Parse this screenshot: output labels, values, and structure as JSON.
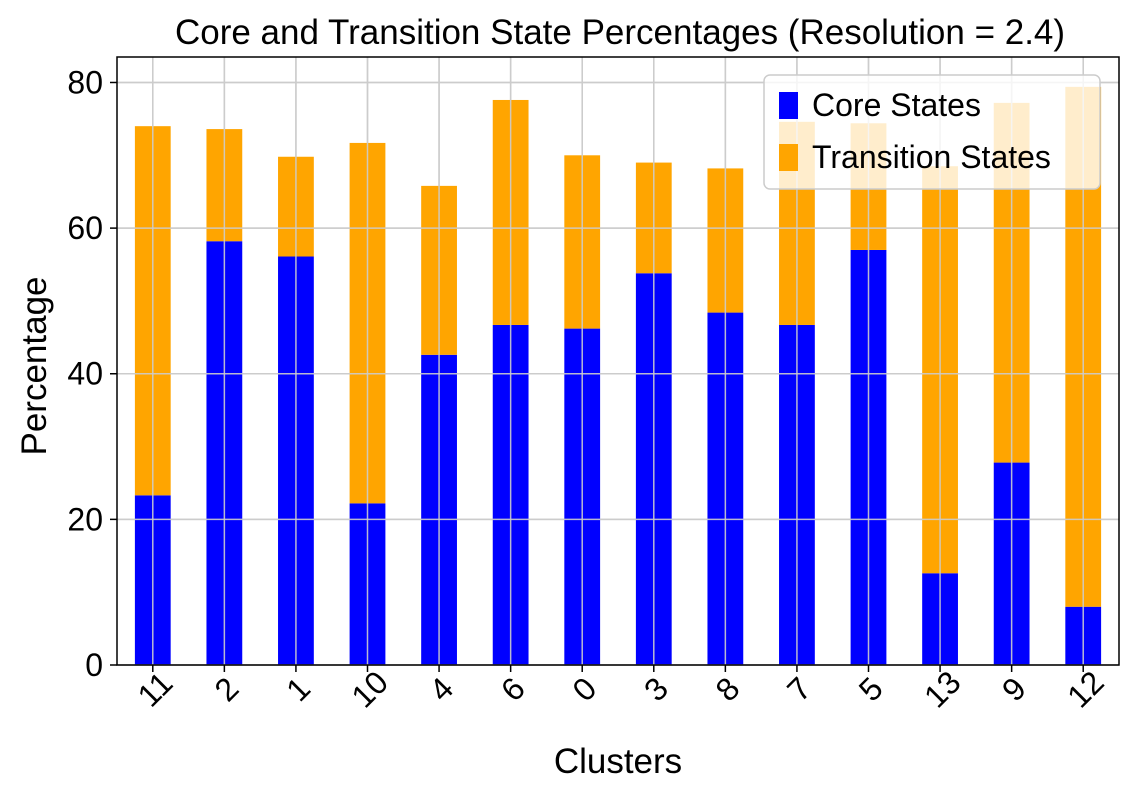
{
  "chart_data": {
    "type": "bar",
    "stacked": true,
    "title": "Core and Transition State Percentages (Resolution = 2.4)",
    "xlabel": "Clusters",
    "ylabel": "Percentage",
    "categories": [
      "11",
      "2",
      "1",
      "10",
      "4",
      "6",
      "0",
      "3",
      "8",
      "7",
      "5",
      "13",
      "9",
      "12"
    ],
    "series": [
      {
        "name": "Core States",
        "color": "#0000ff",
        "values": [
          23.3,
          58.2,
          56.1,
          22.2,
          42.6,
          46.7,
          46.2,
          53.8,
          48.4,
          46.7,
          57.0,
          12.6,
          27.8,
          8.0
        ]
      },
      {
        "name": "Transition States",
        "color": "#ffa500",
        "values": [
          50.7,
          15.4,
          13.7,
          49.5,
          23.2,
          30.9,
          23.8,
          15.2,
          19.8,
          27.9,
          17.4,
          55.9,
          49.4,
          71.4
        ]
      }
    ],
    "ylim": [
      0,
      83.5
    ],
    "yticks": [
      0,
      20,
      40,
      60,
      80
    ],
    "grid": true,
    "legend": "top-right",
    "xtick_rotation": -45
  }
}
